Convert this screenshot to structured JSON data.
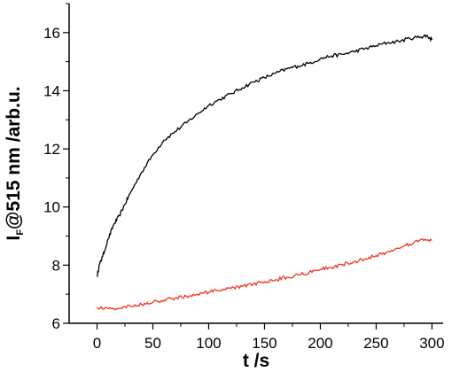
{
  "chart_data": {
    "type": "line",
    "xlabel": "t /s",
    "ylabel": {
      "main": "I",
      "subscript": "F",
      "rest": "@515 nm /arb.u."
    },
    "xlim": [
      -25,
      310
    ],
    "ylim": [
      6,
      17
    ],
    "xticks": [
      0,
      50,
      100,
      150,
      200,
      250,
      300
    ],
    "yticks": [
      6,
      8,
      10,
      12,
      14,
      16
    ],
    "grid": false,
    "series": [
      {
        "color": "#000000",
        "x": [
          0,
          2,
          5,
          10,
          15,
          20,
          25,
          30,
          40,
          50,
          60,
          70,
          80,
          90,
          100,
          110,
          120,
          130,
          140,
          150,
          160,
          170,
          180,
          190,
          200,
          210,
          220,
          230,
          240,
          250,
          260,
          270,
          280,
          290,
          295,
          300
        ],
        "y": [
          7.6,
          8.0,
          8.3,
          8.9,
          9.4,
          9.7,
          10.1,
          10.5,
          11.2,
          11.8,
          12.3,
          12.6,
          12.9,
          13.2,
          13.5,
          13.7,
          13.9,
          14.1,
          14.3,
          14.45,
          14.6,
          14.75,
          14.85,
          14.95,
          15.1,
          15.2,
          15.25,
          15.35,
          15.45,
          15.55,
          15.65,
          15.7,
          15.8,
          15.85,
          15.9,
          15.75
        ]
      },
      {
        "color": "#ee3322",
        "x": [
          0,
          10,
          20,
          30,
          40,
          50,
          60,
          70,
          80,
          90,
          100,
          110,
          120,
          130,
          140,
          150,
          160,
          170,
          180,
          190,
          200,
          210,
          220,
          230,
          240,
          250,
          260,
          270,
          280,
          290,
          300
        ],
        "y": [
          6.55,
          6.5,
          6.52,
          6.58,
          6.65,
          6.72,
          6.8,
          6.87,
          6.93,
          7.0,
          7.07,
          7.13,
          7.2,
          7.27,
          7.35,
          7.43,
          7.5,
          7.58,
          7.67,
          7.75,
          7.85,
          7.93,
          8.02,
          8.12,
          8.22,
          8.33,
          8.45,
          8.58,
          8.72,
          8.88,
          8.85
        ]
      }
    ]
  }
}
